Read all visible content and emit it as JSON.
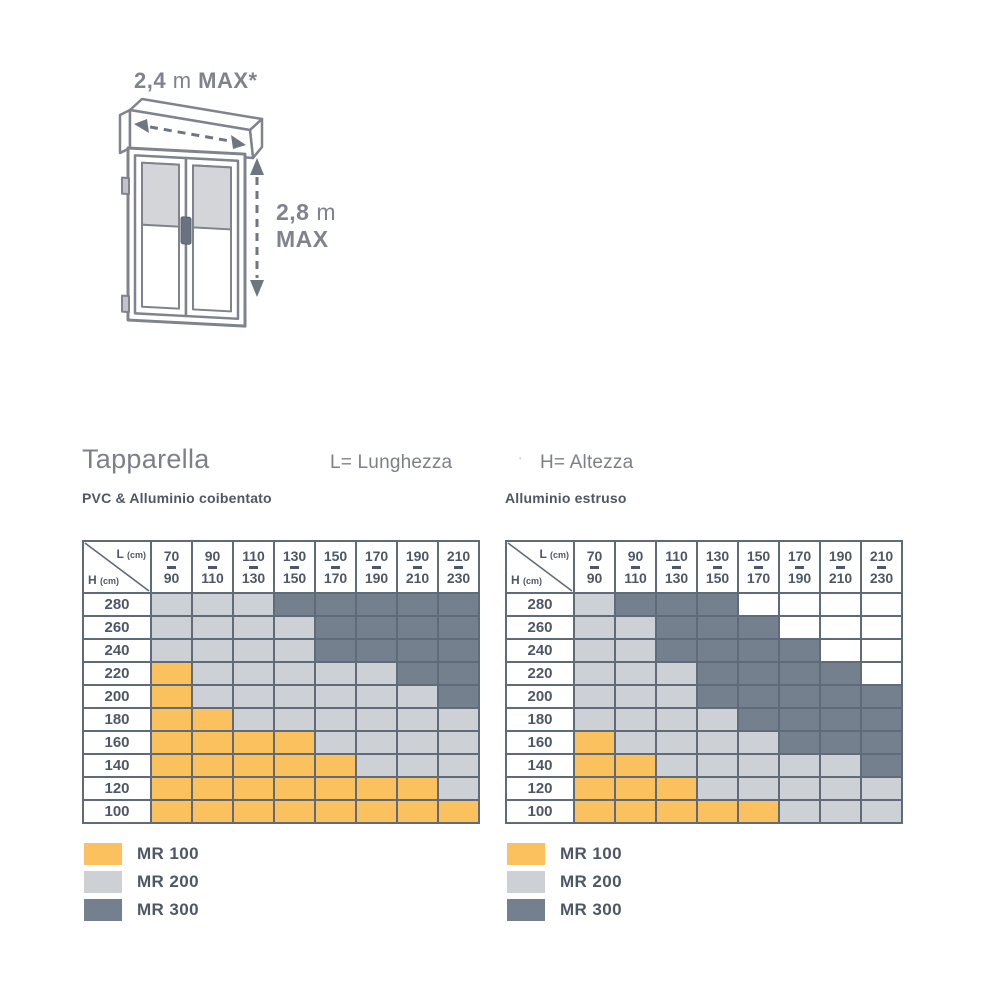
{
  "header": {
    "title": "Tapparella",
    "length_label": "L= Lunghezza",
    "separator": "·",
    "height_label": "H= Altezza"
  },
  "diagram": {
    "width_value": "2,4",
    "width_unit": "m",
    "width_max": "MAX*",
    "height_value": "2,8",
    "height_unit": "m",
    "height_max": "MAX"
  },
  "colors": {
    "mr100": "#FAC15E",
    "mr200": "#CDD1D6",
    "mr300": "#75808F",
    "grid": "#5F6A7A",
    "ink": "#4E5767",
    "muted": "#7B8089",
    "empty": "#FFFFFF",
    "outline": "#7E838E",
    "shade": "#D3D5D9"
  },
  "tables": [
    {
      "subtitle": "PVC & Alluminio coibentato",
      "corner": {
        "l": "L",
        "h": "H",
        "unit": "(cm)"
      },
      "columns": [
        {
          "from": "70",
          "to": "90"
        },
        {
          "from": "90",
          "to": "110"
        },
        {
          "from": "110",
          "to": "130"
        },
        {
          "from": "130",
          "to": "150"
        },
        {
          "from": "150",
          "to": "170"
        },
        {
          "from": "170",
          "to": "190"
        },
        {
          "from": "190",
          "to": "210"
        },
        {
          "from": "210",
          "to": "230"
        }
      ],
      "rows": [
        "280",
        "260",
        "240",
        "220",
        "200",
        "180",
        "160",
        "140",
        "120",
        "100"
      ],
      "cells": [
        [
          "L",
          "L",
          "L",
          "D",
          "D",
          "D",
          "D",
          "D"
        ],
        [
          "L",
          "L",
          "L",
          "L",
          "D",
          "D",
          "D",
          "D"
        ],
        [
          "L",
          "L",
          "L",
          "L",
          "D",
          "D",
          "D",
          "D"
        ],
        [
          "Y",
          "L",
          "L",
          "L",
          "L",
          "L",
          "D",
          "D"
        ],
        [
          "Y",
          "L",
          "L",
          "L",
          "L",
          "L",
          "L",
          "D"
        ],
        [
          "Y",
          "Y",
          "L",
          "L",
          "L",
          "L",
          "L",
          "L"
        ],
        [
          "Y",
          "Y",
          "Y",
          "Y",
          "L",
          "L",
          "L",
          "L"
        ],
        [
          "Y",
          "Y",
          "Y",
          "Y",
          "Y",
          "L",
          "L",
          "L"
        ],
        [
          "Y",
          "Y",
          "Y",
          "Y",
          "Y",
          "Y",
          "Y",
          "L"
        ],
        [
          "Y",
          "Y",
          "Y",
          "Y",
          "Y",
          "Y",
          "Y",
          "Y"
        ]
      ],
      "legend": [
        {
          "code": "Y",
          "label": "MR 100"
        },
        {
          "code": "L",
          "label": "MR 200"
        },
        {
          "code": "D",
          "label": "MR 300"
        }
      ]
    },
    {
      "subtitle": "Alluminio estruso",
      "corner": {
        "l": "L",
        "h": "H",
        "unit": "(cm)"
      },
      "columns": [
        {
          "from": "70",
          "to": "90"
        },
        {
          "from": "90",
          "to": "110"
        },
        {
          "from": "110",
          "to": "130"
        },
        {
          "from": "130",
          "to": "150"
        },
        {
          "from": "150",
          "to": "170"
        },
        {
          "from": "170",
          "to": "190"
        },
        {
          "from": "190",
          "to": "210"
        },
        {
          "from": "210",
          "to": "230"
        }
      ],
      "rows": [
        "280",
        "260",
        "240",
        "220",
        "200",
        "180",
        "160",
        "140",
        "120",
        "100"
      ],
      "cells": [
        [
          "L",
          "D",
          "D",
          "D",
          "W",
          "W",
          "W",
          "W"
        ],
        [
          "L",
          "L",
          "D",
          "D",
          "D",
          "W",
          "W",
          "W"
        ],
        [
          "L",
          "L",
          "D",
          "D",
          "D",
          "D",
          "W",
          "W"
        ],
        [
          "L",
          "L",
          "L",
          "D",
          "D",
          "D",
          "D",
          "W"
        ],
        [
          "L",
          "L",
          "L",
          "D",
          "D",
          "D",
          "D",
          "D"
        ],
        [
          "L",
          "L",
          "L",
          "L",
          "D",
          "D",
          "D",
          "D"
        ],
        [
          "Y",
          "L",
          "L",
          "L",
          "L",
          "D",
          "D",
          "D"
        ],
        [
          "Y",
          "Y",
          "L",
          "L",
          "L",
          "L",
          "L",
          "D"
        ],
        [
          "Y",
          "Y",
          "Y",
          "L",
          "L",
          "L",
          "L",
          "L"
        ],
        [
          "Y",
          "Y",
          "Y",
          "Y",
          "Y",
          "L",
          "L",
          "L"
        ]
      ],
      "legend": [
        {
          "code": "Y",
          "label": "MR 100"
        },
        {
          "code": "L",
          "label": "MR 200"
        },
        {
          "code": "D",
          "label": "MR 300"
        }
      ]
    }
  ]
}
